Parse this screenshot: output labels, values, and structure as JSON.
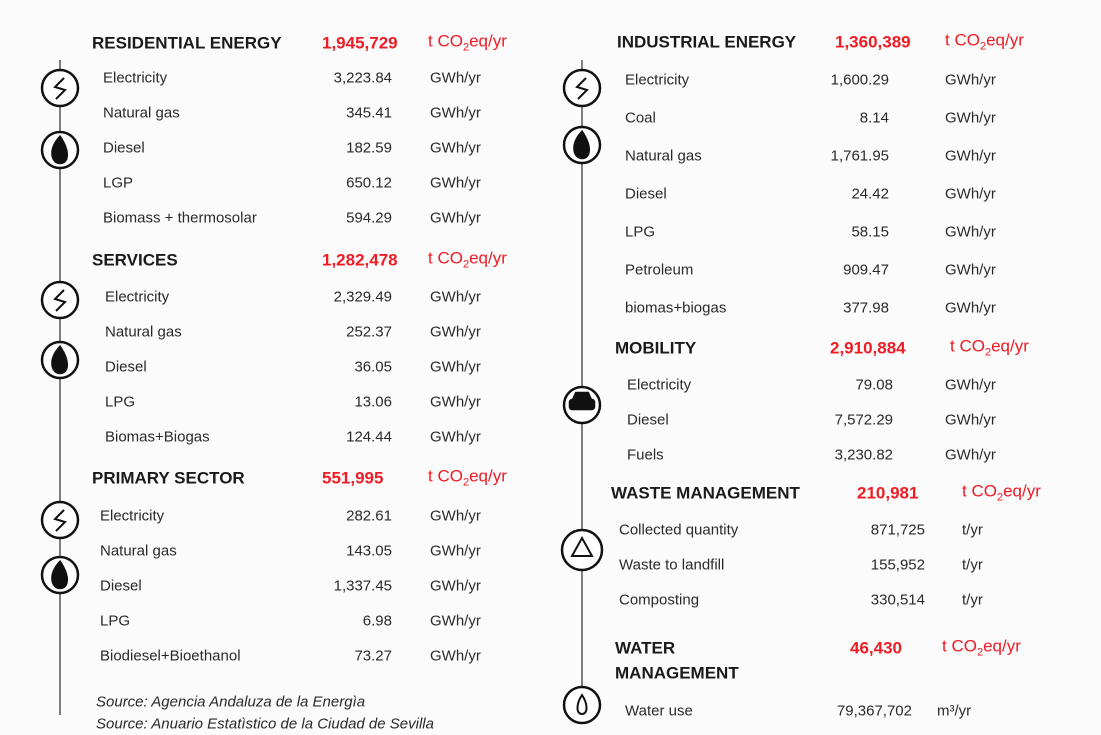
{
  "sections": [
    {
      "title": [
        "RESIDENTIAL ENERGY"
      ],
      "total": "1,945,729",
      "unit": {
        "main": "t CO",
        "sub": "2",
        "end": "eq/yr"
      },
      "items": [
        {
          "label": "Electricity",
          "value": "3,223.84",
          "unit": "GWh/yr"
        },
        {
          "label": "Natural gas",
          "value": "345.41",
          "unit": "GWh/yr"
        },
        {
          "label": "Diesel",
          "value": "182.59",
          "unit": "GWh/yr"
        },
        {
          "label": "LGP",
          "value": "650.12",
          "unit": "GWh/yr"
        },
        {
          "label": "Biomass + thermosolar",
          "value": "594.29",
          "unit": "GWh/yr"
        }
      ]
    },
    {
      "title": [
        "SERVICES"
      ],
      "total": "1,282,478",
      "unit": {
        "main": "t CO",
        "sub": "2",
        "end": "eq/yr"
      },
      "items": [
        {
          "label": "Electricity",
          "value": "2,329.49",
          "unit": "GWh/yr"
        },
        {
          "label": "Natural gas",
          "value": "252.37",
          "unit": "GWh/yr"
        },
        {
          "label": "Diesel",
          "value": "36.05",
          "unit": "GWh/yr"
        },
        {
          "label": "LPG",
          "value": "13.06",
          "unit": "GWh/yr"
        },
        {
          "label": "Biomas+Biogas",
          "value": "124.44",
          "unit": "GWh/yr"
        }
      ]
    },
    {
      "title": [
        "PRIMARY SECTOR"
      ],
      "total": "551,995",
      "unit": {
        "main": "t CO",
        "sub": "2",
        "end": "eq/yr"
      },
      "items": [
        {
          "label": "Electricity",
          "value": "282.61",
          "unit": "GWh/yr"
        },
        {
          "label": "Natural gas",
          "value": "143.05",
          "unit": "GWh/yr"
        },
        {
          "label": "Diesel",
          "value": "1,337.45",
          "unit": "GWh/yr"
        },
        {
          "label": "LPG",
          "value": "6.98",
          "unit": "GWh/yr"
        },
        {
          "label": "Biodiesel+Bioethanol",
          "value": "73.27",
          "unit": "GWh/yr"
        }
      ]
    },
    {
      "title": [
        "INDUSTRIAL ENERGY"
      ],
      "total": "1,360,389",
      "unit": {
        "main": "t CO",
        "sub": "2",
        "end": "eq/yr"
      },
      "items": [
        {
          "label": "Electricity",
          "value": "1,600.29",
          "unit": "GWh/yr"
        },
        {
          "label": "Coal",
          "value": "8.14",
          "unit": "GWh/yr"
        },
        {
          "label": "Natural gas",
          "value": "1,761.95",
          "unit": "GWh/yr"
        },
        {
          "label": "Diesel",
          "value": "24.42",
          "unit": "GWh/yr"
        },
        {
          "label": "LPG",
          "value": "58.15",
          "unit": "GWh/yr"
        },
        {
          "label": "Petroleum",
          "value": "909.47",
          "unit": "GWh/yr"
        },
        {
          "label": "biomas+biogas",
          "value": "377.98",
          "unit": "GWh/yr"
        }
      ]
    },
    {
      "title": [
        "MOBILITY"
      ],
      "total": "2,910,884",
      "unit": {
        "main": "t CO",
        "sub": "2",
        "end": "eq/yr"
      },
      "items": [
        {
          "label": "Electricity",
          "value": "79.08",
          "unit": "GWh/yr"
        },
        {
          "label": "Diesel",
          "value": "7,572.29",
          "unit": "GWh/yr"
        },
        {
          "label": "Fuels",
          "value": "3,230.82",
          "unit": "GWh/yr"
        }
      ]
    },
    {
      "title": [
        "WASTE MANAGEMENT"
      ],
      "total": "210,981",
      "unit": {
        "main": "t CO",
        "sub": "2",
        "end": "eq/yr"
      },
      "items": [
        {
          "label": "Collected quantity",
          "value": "871,725",
          "unit": "t/yr"
        },
        {
          "label": "Waste to landfill",
          "value": "155,952",
          "unit": "t/yr"
        },
        {
          "label": "Composting",
          "value": "330,514",
          "unit": "t/yr"
        }
      ]
    },
    {
      "title": [
        "WATER",
        "MANAGEMENT"
      ],
      "total": "46,430",
      "unit": {
        "main": "t CO",
        "sub": "2",
        "end": "eq/yr"
      },
      "items": [
        {
          "label": "Water use",
          "value": "79,367,702",
          "unit": "m³/yr"
        }
      ]
    }
  ],
  "sources": [
    "Source: Agencia Andaluza de la Energìa",
    "Source: Anuario Estatìstico de la Ciudad de Sevilla"
  ]
}
